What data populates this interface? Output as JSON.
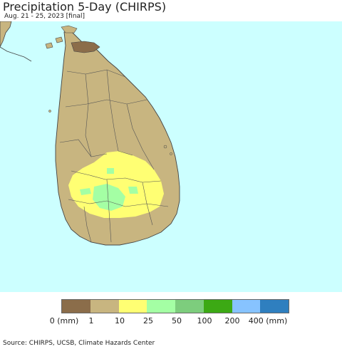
{
  "header": {
    "title": "Precipitation 5-Day (CHIRPS)",
    "subtitle": "Aug. 21 - 25, 2023 [final]"
  },
  "map": {
    "ocean_color": "#ccffff",
    "land_color": "#c8b580",
    "border_color": "#444444"
  },
  "legend": {
    "colors": [
      "#8b6d4a",
      "#c8b580",
      "#ffff73",
      "#a4ffa4",
      "#7dcd7d",
      "#3ca914",
      "#87c3ff",
      "#2f7fbf"
    ],
    "labels": [
      "0 (mm)",
      "1",
      "10",
      "25",
      "50",
      "100",
      "200",
      "400 (mm)"
    ]
  },
  "footer": {
    "source": "Source: CHIRPS, UCSB, Climate Hazards Center"
  }
}
